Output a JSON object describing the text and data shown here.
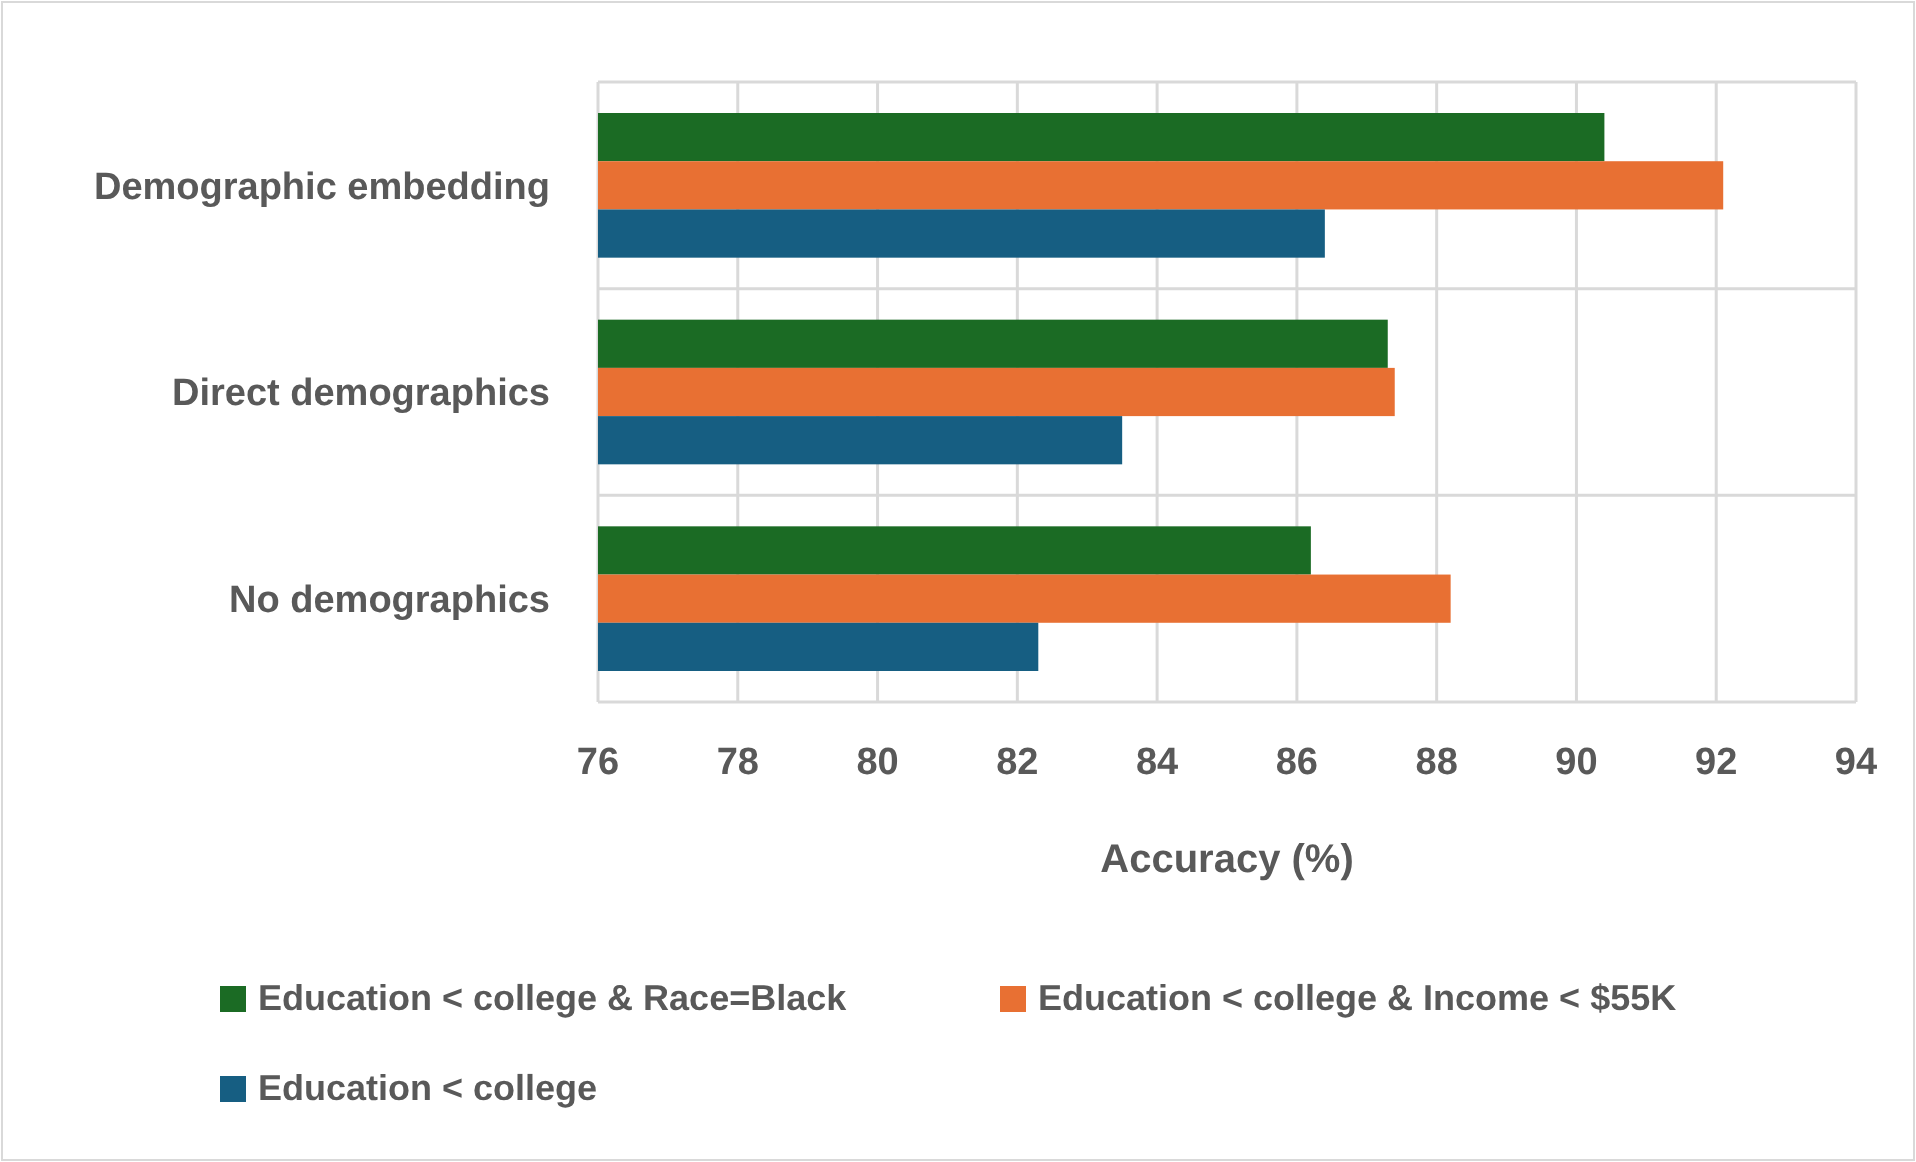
{
  "chart_data": {
    "type": "bar",
    "orientation": "horizontal",
    "xlabel": "Accuracy (%)",
    "categories": [
      "Demographic embedding",
      "Direct demographics",
      "No demographics"
    ],
    "series": [
      {
        "name": "Education < college & Race=Black",
        "color": "#1b6b24",
        "values": [
          90.4,
          87.3,
          86.2
        ]
      },
      {
        "name": "Education < college & Income < $55K",
        "color": "#e87033",
        "values": [
          92.1,
          87.4,
          88.2
        ]
      },
      {
        "name": "Education < college",
        "color": "#165e82",
        "values": [
          86.4,
          83.5,
          82.3
        ]
      }
    ],
    "xlim": [
      76,
      94
    ],
    "xticks": [
      76,
      78,
      80,
      82,
      84,
      86,
      88,
      90,
      92,
      94
    ],
    "grid": true,
    "legend": "bottom"
  }
}
